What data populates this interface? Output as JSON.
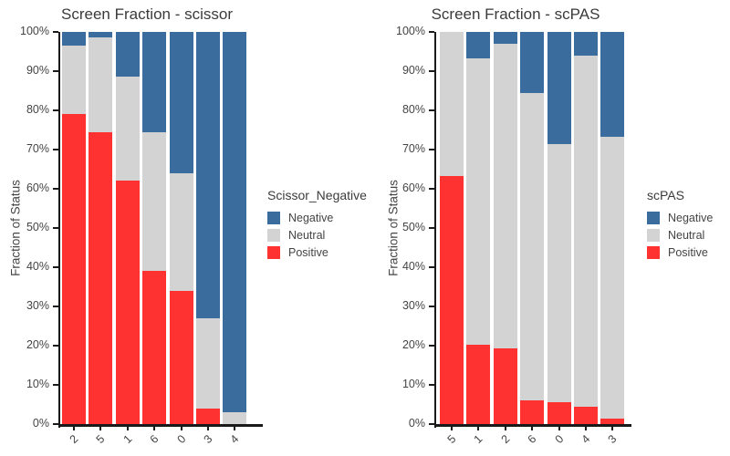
{
  "page": {
    "background": "#FFFFFF"
  },
  "colors": {
    "negative_blue": "#3A6D9E",
    "neutral_gray": "#D3D3D3",
    "positive_red": "#FF3232",
    "text": "#444444",
    "axis_line": "#1A1A1A"
  },
  "chart_data": [
    {
      "type": "bar",
      "subtype": "stacked-percent",
      "title": "Screen Fraction - scissor",
      "xlabel": "",
      "ylabel": "Fraction of Status",
      "legend_title": "Scissor_Negative",
      "legend_position": "right",
      "grid": false,
      "ylim": [
        0,
        100
      ],
      "yticks": [
        "0%",
        "10%",
        "20%",
        "30%",
        "40%",
        "50%",
        "60%",
        "70%",
        "80%",
        "90%",
        "100%"
      ],
      "categories": [
        "2",
        "5",
        "1",
        "6",
        "0",
        "3",
        "4"
      ],
      "series": [
        {
          "name": "Negative",
          "color": "#3A6D9E",
          "values": [
            3.5,
            1.5,
            11.5,
            25.5,
            36.0,
            73.0,
            97.0
          ]
        },
        {
          "name": "Neutral",
          "color": "#D3D3D3",
          "values": [
            17.5,
            24.0,
            26.5,
            35.5,
            30.0,
            23.0,
            3.0
          ]
        },
        {
          "name": "Positive",
          "color": "#FF3232",
          "values": [
            79.0,
            74.5,
            62.0,
            39.0,
            34.0,
            4.0,
            0.0
          ]
        }
      ],
      "stack_order_bottom_to_top": [
        "Positive",
        "Neutral",
        "Negative"
      ]
    },
    {
      "type": "bar",
      "subtype": "stacked-percent",
      "title": "Screen Fraction - scPAS",
      "xlabel": "",
      "ylabel": "Fraction of Status",
      "legend_title": "scPAS",
      "legend_position": "right",
      "grid": false,
      "ylim": [
        0,
        100
      ],
      "yticks": [
        "0%",
        "10%",
        "20%",
        "30%",
        "40%",
        "50%",
        "60%",
        "70%",
        "80%",
        "90%",
        "100%"
      ],
      "categories": [
        "5",
        "1",
        "2",
        "6",
        "0",
        "4",
        "3"
      ],
      "series": [
        {
          "name": "Negative",
          "color": "#3A6D9E",
          "values": [
            0.0,
            6.8,
            3.0,
            15.5,
            28.5,
            6.0,
            26.7
          ]
        },
        {
          "name": "Neutral",
          "color": "#D3D3D3",
          "values": [
            36.7,
            72.9,
            77.7,
            78.5,
            66.0,
            89.5,
            72.0
          ]
        },
        {
          "name": "Positive",
          "color": "#FF3232",
          "values": [
            63.3,
            20.3,
            19.3,
            6.0,
            5.5,
            4.5,
            1.3
          ]
        }
      ],
      "stack_order_bottom_to_top": [
        "Positive",
        "Neutral",
        "Negative"
      ]
    }
  ]
}
